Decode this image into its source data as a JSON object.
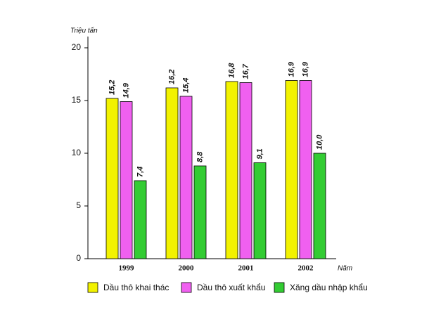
{
  "chart_data": {
    "type": "bar",
    "y_label": "Triệu tấn",
    "x_label": "Năm",
    "categories": [
      "1999",
      "2000",
      "2001",
      "2002"
    ],
    "series": [
      {
        "name": "Dầu thô khai thác",
        "color": "#f2f200",
        "values": [
          15.2,
          16.2,
          16.8,
          16.9
        ],
        "value_labels": [
          "15,2",
          "16,2",
          "16,8",
          "16,9"
        ]
      },
      {
        "name": "Dầu thô xuất khẩu",
        "color": "#f060f0",
        "values": [
          14.9,
          15.4,
          16.7,
          16.9
        ],
        "value_labels": [
          "14,9",
          "15,4",
          "16,7",
          "16,9"
        ]
      },
      {
        "name": "Xăng dầu nhập khẩu",
        "color": "#33cc33",
        "values": [
          7.4,
          8.8,
          9.1,
          10.0
        ],
        "value_labels": [
          "7,4",
          "8,8",
          "9,1",
          "10,0"
        ]
      }
    ],
    "ylim": [
      0,
      20
    ],
    "yticks": [
      0,
      5,
      10,
      15,
      20
    ],
    "grid": false
  }
}
